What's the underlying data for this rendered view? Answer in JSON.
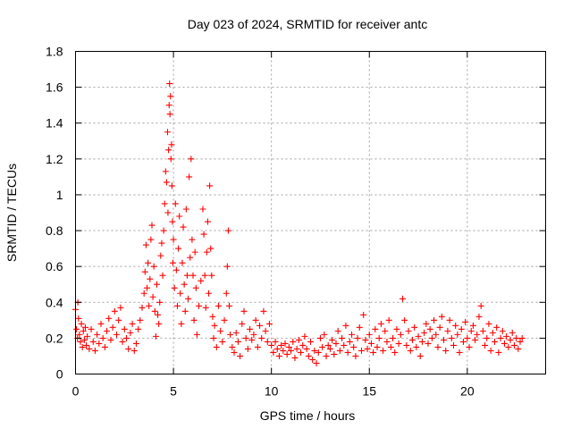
{
  "chart_data": {
    "type": "scatter",
    "title": "Day 023 of 2024, SRMTID for receiver antc",
    "xlabel": "GPS time / hours",
    "ylabel": "SRMTID / TECUs",
    "xlim": [
      0,
      24
    ],
    "ylim": [
      0,
      1.8
    ],
    "xticks": [
      0,
      5,
      10,
      15,
      20
    ],
    "yticks": [
      0,
      0.2,
      0.4,
      0.6,
      0.8,
      1,
      1.2,
      1.4,
      1.6,
      1.8
    ],
    "xtick_labels": [
      "0",
      "5",
      "10",
      "15",
      "20"
    ],
    "ytick_labels": [
      "0",
      "0.2",
      "0.4",
      "0.6",
      "0.8",
      "1",
      "1.2",
      "1.4",
      "1.6",
      "1.8"
    ],
    "grid": true,
    "marker": "+",
    "color": "#ff0000",
    "series": [
      {
        "name": "SRMTID",
        "points": [
          [
            0.0,
            0.36
          ],
          [
            0.05,
            0.25
          ],
          [
            0.1,
            0.2
          ],
          [
            0.12,
            0.4
          ],
          [
            0.15,
            0.31
          ],
          [
            0.2,
            0.22
          ],
          [
            0.25,
            0.18
          ],
          [
            0.3,
            0.28
          ],
          [
            0.35,
            0.15
          ],
          [
            0.4,
            0.24
          ],
          [
            0.45,
            0.19
          ],
          [
            0.5,
            0.26
          ],
          [
            0.55,
            0.16
          ],
          [
            0.6,
            0.21
          ],
          [
            0.7,
            0.14
          ],
          [
            0.8,
            0.25
          ],
          [
            0.9,
            0.18
          ],
          [
            1.0,
            0.13
          ],
          [
            1.1,
            0.22
          ],
          [
            1.2,
            0.17
          ],
          [
            1.3,
            0.28
          ],
          [
            1.4,
            0.2
          ],
          [
            1.5,
            0.15
          ],
          [
            1.6,
            0.24
          ],
          [
            1.7,
            0.31
          ],
          [
            1.8,
            0.19
          ],
          [
            1.9,
            0.26
          ],
          [
            2.0,
            0.35
          ],
          [
            2.1,
            0.22
          ],
          [
            2.2,
            0.3
          ],
          [
            2.3,
            0.37
          ],
          [
            2.4,
            0.18
          ],
          [
            2.5,
            0.25
          ],
          [
            2.6,
            0.2
          ],
          [
            2.7,
            0.14
          ],
          [
            2.8,
            0.23
          ],
          [
            2.9,
            0.28
          ],
          [
            3.0,
            0.13
          ],
          [
            3.1,
            0.17
          ],
          [
            3.2,
            0.25
          ],
          [
            3.3,
            0.3
          ],
          [
            3.4,
            0.37
          ],
          [
            3.5,
            0.45
          ],
          [
            3.55,
            0.57
          ],
          [
            3.6,
            0.72
          ],
          [
            3.65,
            0.48
          ],
          [
            3.7,
            0.62
          ],
          [
            3.75,
            0.38
          ],
          [
            3.8,
            0.53
          ],
          [
            3.85,
            0.75
          ],
          [
            3.9,
            0.83
          ],
          [
            3.95,
            0.43
          ],
          [
            4.0,
            0.6
          ],
          [
            4.05,
            0.35
          ],
          [
            4.1,
            0.21
          ],
          [
            4.15,
            0.5
          ],
          [
            4.2,
            0.33
          ],
          [
            4.25,
            0.28
          ],
          [
            4.3,
            0.4
          ],
          [
            4.35,
            0.66
          ],
          [
            4.4,
            0.73
          ],
          [
            4.45,
            0.55
          ],
          [
            4.5,
            0.8
          ],
          [
            4.55,
            0.95
          ],
          [
            4.6,
            1.13
          ],
          [
            4.65,
            1.07
          ],
          [
            4.7,
            1.35
          ],
          [
            4.72,
            0.9
          ],
          [
            4.75,
            1.25
          ],
          [
            4.78,
            1.5
          ],
          [
            4.8,
            1.62
          ],
          [
            4.82,
            1.45
          ],
          [
            4.85,
            1.55
          ],
          [
            4.87,
            1.2
          ],
          [
            4.9,
            1.28
          ],
          [
            4.92,
            1.05
          ],
          [
            4.95,
            0.85
          ],
          [
            4.97,
            0.62
          ],
          [
            5.0,
            0.75
          ],
          [
            5.05,
            0.48
          ],
          [
            5.1,
            0.95
          ],
          [
            5.15,
            0.58
          ],
          [
            5.2,
            0.38
          ],
          [
            5.25,
            0.7
          ],
          [
            5.3,
            0.88
          ],
          [
            5.35,
            0.45
          ],
          [
            5.4,
            0.28
          ],
          [
            5.45,
            0.62
          ],
          [
            5.5,
            0.82
          ],
          [
            5.55,
            0.5
          ],
          [
            5.6,
            0.35
          ],
          [
            5.65,
            0.92
          ],
          [
            5.7,
            0.55
          ],
          [
            5.75,
            0.42
          ],
          [
            5.8,
            1.1
          ],
          [
            5.85,
            0.65
          ],
          [
            5.9,
            1.2
          ],
          [
            5.95,
            0.75
          ],
          [
            6.0,
            0.55
          ],
          [
            6.05,
            0.3
          ],
          [
            6.1,
            0.68
          ],
          [
            6.15,
            0.48
          ],
          [
            6.2,
            0.22
          ],
          [
            6.3,
            0.38
          ],
          [
            6.4,
            0.52
          ],
          [
            6.5,
            0.92
          ],
          [
            6.55,
            0.78
          ],
          [
            6.6,
            0.55
          ],
          [
            6.65,
            0.37
          ],
          [
            6.7,
            0.68
          ],
          [
            6.75,
            0.85
          ],
          [
            6.8,
            0.45
          ],
          [
            6.85,
            1.05
          ],
          [
            6.9,
            0.7
          ],
          [
            6.95,
            0.55
          ],
          [
            7.0,
            0.32
          ],
          [
            7.05,
            0.2
          ],
          [
            7.1,
            0.27
          ],
          [
            7.2,
            0.15
          ],
          [
            7.3,
            0.38
          ],
          [
            7.4,
            0.24
          ],
          [
            7.5,
            0.18
          ],
          [
            7.6,
            0.3
          ],
          [
            7.7,
            0.45
          ],
          [
            7.75,
            0.6
          ],
          [
            7.8,
            0.8
          ],
          [
            7.85,
            0.38
          ],
          [
            7.9,
            0.22
          ],
          [
            8.0,
            0.15
          ],
          [
            8.1,
            0.12
          ],
          [
            8.2,
            0.23
          ],
          [
            8.3,
            0.18
          ],
          [
            8.4,
            0.1
          ],
          [
            8.5,
            0.28
          ],
          [
            8.6,
            0.35
          ],
          [
            8.7,
            0.2
          ],
          [
            8.8,
            0.14
          ],
          [
            8.9,
            0.25
          ],
          [
            9.0,
            0.19
          ],
          [
            9.1,
            0.22
          ],
          [
            9.2,
            0.3
          ],
          [
            9.3,
            0.15
          ],
          [
            9.4,
            0.27
          ],
          [
            9.5,
            0.2
          ],
          [
            9.6,
            0.35
          ],
          [
            9.7,
            0.24
          ],
          [
            9.8,
            0.18
          ],
          [
            9.9,
            0.28
          ],
          [
            10.0,
            0.16
          ],
          [
            10.1,
            0.12
          ],
          [
            10.2,
            0.18
          ],
          [
            10.3,
            0.14
          ],
          [
            10.4,
            0.1
          ],
          [
            10.5,
            0.16
          ],
          [
            10.6,
            0.13
          ],
          [
            10.7,
            0.17
          ],
          [
            10.8,
            0.11
          ],
          [
            10.9,
            0.15
          ],
          [
            11.0,
            0.13
          ],
          [
            11.1,
            0.18
          ],
          [
            11.2,
            0.09
          ],
          [
            11.3,
            0.14
          ],
          [
            11.4,
            0.19
          ],
          [
            11.5,
            0.12
          ],
          [
            11.6,
            0.16
          ],
          [
            11.7,
            0.21
          ],
          [
            11.8,
            0.14
          ],
          [
            11.9,
            0.1
          ],
          [
            12.0,
            0.18
          ],
          [
            12.1,
            0.08
          ],
          [
            12.2,
            0.13
          ],
          [
            12.3,
            0.06
          ],
          [
            12.4,
            0.12
          ],
          [
            12.5,
            0.2
          ],
          [
            12.6,
            0.15
          ],
          [
            12.7,
            0.22
          ],
          [
            12.8,
            0.1
          ],
          [
            12.9,
            0.16
          ],
          [
            13.0,
            0.14
          ],
          [
            13.1,
            0.19
          ],
          [
            13.2,
            0.11
          ],
          [
            13.3,
            0.17
          ],
          [
            13.4,
            0.24
          ],
          [
            13.5,
            0.13
          ],
          [
            13.6,
            0.2
          ],
          [
            13.7,
            0.16
          ],
          [
            13.8,
            0.27
          ],
          [
            13.9,
            0.12
          ],
          [
            14.0,
            0.18
          ],
          [
            14.1,
            0.22
          ],
          [
            14.2,
            0.15
          ],
          [
            14.3,
            0.1
          ],
          [
            14.4,
            0.2
          ],
          [
            14.5,
            0.26
          ],
          [
            14.6,
            0.13
          ],
          [
            14.7,
            0.33
          ],
          [
            14.8,
            0.19
          ],
          [
            14.9,
            0.14
          ],
          [
            15.0,
            0.22
          ],
          [
            15.1,
            0.17
          ],
          [
            15.2,
            0.12
          ],
          [
            15.3,
            0.25
          ],
          [
            15.4,
            0.15
          ],
          [
            15.5,
            0.2
          ],
          [
            15.6,
            0.28
          ],
          [
            15.7,
            0.13
          ],
          [
            15.8,
            0.24
          ],
          [
            15.9,
            0.18
          ],
          [
            16.0,
            0.3
          ],
          [
            16.1,
            0.15
          ],
          [
            16.2,
            0.2
          ],
          [
            16.3,
            0.12
          ],
          [
            16.4,
            0.25
          ],
          [
            16.5,
            0.17
          ],
          [
            16.6,
            0.22
          ],
          [
            16.7,
            0.42
          ],
          [
            16.8,
            0.3
          ],
          [
            16.9,
            0.16
          ],
          [
            17.0,
            0.24
          ],
          [
            17.1,
            0.13
          ],
          [
            17.2,
            0.19
          ],
          [
            17.3,
            0.26
          ],
          [
            17.4,
            0.15
          ],
          [
            17.5,
            0.21
          ],
          [
            17.6,
            0.1
          ],
          [
            17.7,
            0.18
          ],
          [
            17.8,
            0.23
          ],
          [
            17.9,
            0.28
          ],
          [
            18.0,
            0.17
          ],
          [
            18.1,
            0.25
          ],
          [
            18.2,
            0.2
          ],
          [
            18.3,
            0.3
          ],
          [
            18.4,
            0.22
          ],
          [
            18.5,
            0.15
          ],
          [
            18.6,
            0.26
          ],
          [
            18.7,
            0.32
          ],
          [
            18.8,
            0.19
          ],
          [
            18.9,
            0.13
          ],
          [
            19.0,
            0.24
          ],
          [
            19.1,
            0.3
          ],
          [
            19.2,
            0.2
          ],
          [
            19.3,
            0.16
          ],
          [
            19.4,
            0.27
          ],
          [
            19.5,
            0.22
          ],
          [
            19.6,
            0.12
          ],
          [
            19.7,
            0.25
          ],
          [
            19.8,
            0.18
          ],
          [
            19.9,
            0.29
          ],
          [
            20.0,
            0.2
          ],
          [
            20.1,
            0.15
          ],
          [
            20.2,
            0.24
          ],
          [
            20.3,
            0.27
          ],
          [
            20.4,
            0.19
          ],
          [
            20.5,
            0.22
          ],
          [
            20.6,
            0.32
          ],
          [
            20.7,
            0.38
          ],
          [
            20.8,
            0.24
          ],
          [
            20.9,
            0.16
          ],
          [
            21.0,
            0.2
          ],
          [
            21.1,
            0.28
          ],
          [
            21.2,
            0.13
          ],
          [
            21.3,
            0.23
          ],
          [
            21.4,
            0.18
          ],
          [
            21.5,
            0.26
          ],
          [
            21.6,
            0.12
          ],
          [
            21.7,
            0.2
          ],
          [
            21.8,
            0.24
          ],
          [
            21.9,
            0.17
          ],
          [
            22.0,
            0.21
          ],
          [
            22.1,
            0.15
          ],
          [
            22.2,
            0.19
          ],
          [
            22.3,
            0.23
          ],
          [
            22.4,
            0.16
          ],
          [
            22.5,
            0.2
          ],
          [
            22.6,
            0.14
          ],
          [
            22.7,
            0.18
          ],
          [
            22.8,
            0.2
          ]
        ]
      }
    ]
  }
}
